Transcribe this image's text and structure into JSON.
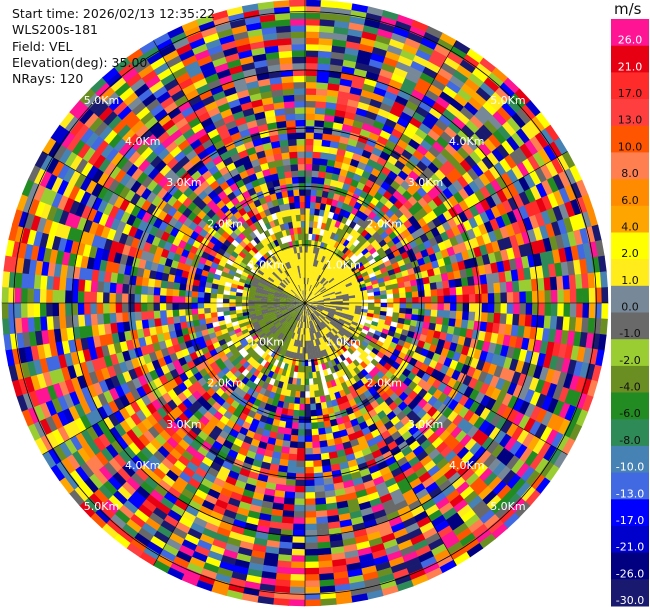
{
  "header": {
    "start_time": "Start time: 2026/02/13 12:35:22",
    "instrument": "WLS200s-181",
    "field": "Field: VEL",
    "elevation": "Elevation(deg): 35.00",
    "nrays": "NRays: 120"
  },
  "colorbar": {
    "unit": "m/s",
    "levels": [
      {
        "label": "26.0",
        "color": "#ff1493"
      },
      {
        "label": "21.0",
        "color": "#e60012"
      },
      {
        "label": "17.0",
        "color": "#ff2a2a"
      },
      {
        "label": "13.0",
        "color": "#ff3f3f"
      },
      {
        "label": "10.0",
        "color": "#ff5500"
      },
      {
        "label": "8.0",
        "color": "#ff7f50"
      },
      {
        "label": "6.0",
        "color": "#ff8c00"
      },
      {
        "label": "4.0",
        "color": "#ffa500"
      },
      {
        "label": "2.0",
        "color": "#ffff00"
      },
      {
        "label": "1.0",
        "color": "#ffec1a"
      },
      {
        "label": "0.0",
        "color": "#778899"
      },
      {
        "label": "-1.0",
        "color": "#696969"
      },
      {
        "label": "-2.0",
        "color": "#9acd32"
      },
      {
        "label": "-4.0",
        "color": "#6b8e23"
      },
      {
        "label": "-6.0",
        "color": "#228b22"
      },
      {
        "label": "-8.0",
        "color": "#2e8b57"
      },
      {
        "label": "-10.0",
        "color": "#4682b4"
      },
      {
        "label": "-13.0",
        "color": "#4169e1"
      },
      {
        "label": "-17.0",
        "color": "#0000ff"
      },
      {
        "label": "-21.0",
        "color": "#0000cd"
      },
      {
        "label": "-26.0",
        "color": "#000080"
      },
      {
        "label": "-30.0",
        "color": "#191970"
      }
    ]
  },
  "chart_data": {
    "type": "heatmap",
    "projection": "polar PPI",
    "field": "VEL",
    "units": "m/s",
    "nrays": 120,
    "elevation_deg": 35.0,
    "max_range_km": 5.2,
    "range_rings_km": [
      1,
      2,
      3,
      4,
      5
    ],
    "ring_labels": [
      "1.0Km",
      "2.0Km",
      "3.0Km",
      "4.0Km",
      "5.0Km"
    ],
    "grid": true,
    "inner_region_note_values": {
      "yellow_near_field_ms": 1.0,
      "grey_near_field_ms": -1.0,
      "olive_near_field_ms": -2.0
    }
  }
}
